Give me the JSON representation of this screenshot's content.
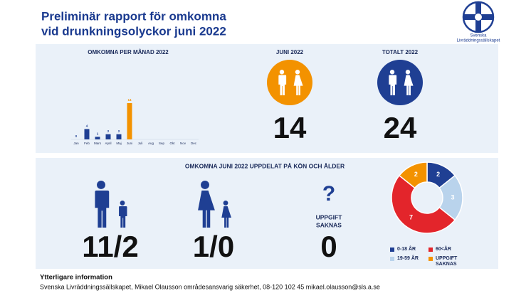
{
  "header": {
    "title_lines": [
      "Preliminär rapport för omkomna",
      "vid drunkningsolyckor juni 2022"
    ],
    "logo_text": [
      "Svenska",
      "Livräddningssällskapet"
    ]
  },
  "chart_data": [
    {
      "type": "bar",
      "title": "OMKOMNA PER MÅNAD 2022",
      "categories": [
        "Jan",
        "Feb",
        "Mars",
        "April",
        "Maj",
        "Juni",
        "Juli",
        "Aug",
        "Sep",
        "Okt",
        "Nov",
        "Dec"
      ],
      "values": [
        0,
        4,
        1,
        2,
        2,
        14,
        null,
        null,
        null,
        null,
        null,
        null
      ],
      "colors": [
        "#1f3f93",
        "#1f3f93",
        "#1f3f93",
        "#1f3f93",
        "#1f3f93",
        "#f39200",
        "#1f3f93",
        "#1f3f93",
        "#1f3f93",
        "#1f3f93",
        "#1f3f93",
        "#1f3f93"
      ]
    },
    {
      "type": "pie",
      "donut": true,
      "categories": [
        "0-18 ÅR",
        "19-59 ÅR",
        "60<ÅR",
        "UPPGIFT SAKNAS"
      ],
      "values": [
        2,
        3,
        7,
        2
      ],
      "colors": [
        "#1f3f93",
        "#b9d3ec",
        "#e3252b",
        "#f39200"
      ]
    }
  ],
  "stats": {
    "juni": {
      "label": "JUNI 2022",
      "value": "14",
      "color": "#f39200"
    },
    "totalt": {
      "label": "TOTALT 2022",
      "value": "24",
      "color": "#1f3f93"
    }
  },
  "breakdown": {
    "title": "OMKOMNA JUNI 2022 UPPDELAT PÅ KÖN OCH ÅLDER",
    "men": "11/2",
    "women": "1/0",
    "question": "?",
    "unknown_label": [
      "UPPGIFT",
      "SAKNAS"
    ],
    "unknown": "0"
  },
  "footer": {
    "title": "Ytterligare information",
    "text": "Svenska Livräddningssällskapet, Mikael Olausson områdesansvarig säkerhet, 08-120 102 45 mikael.olausson@sls.a.se"
  }
}
